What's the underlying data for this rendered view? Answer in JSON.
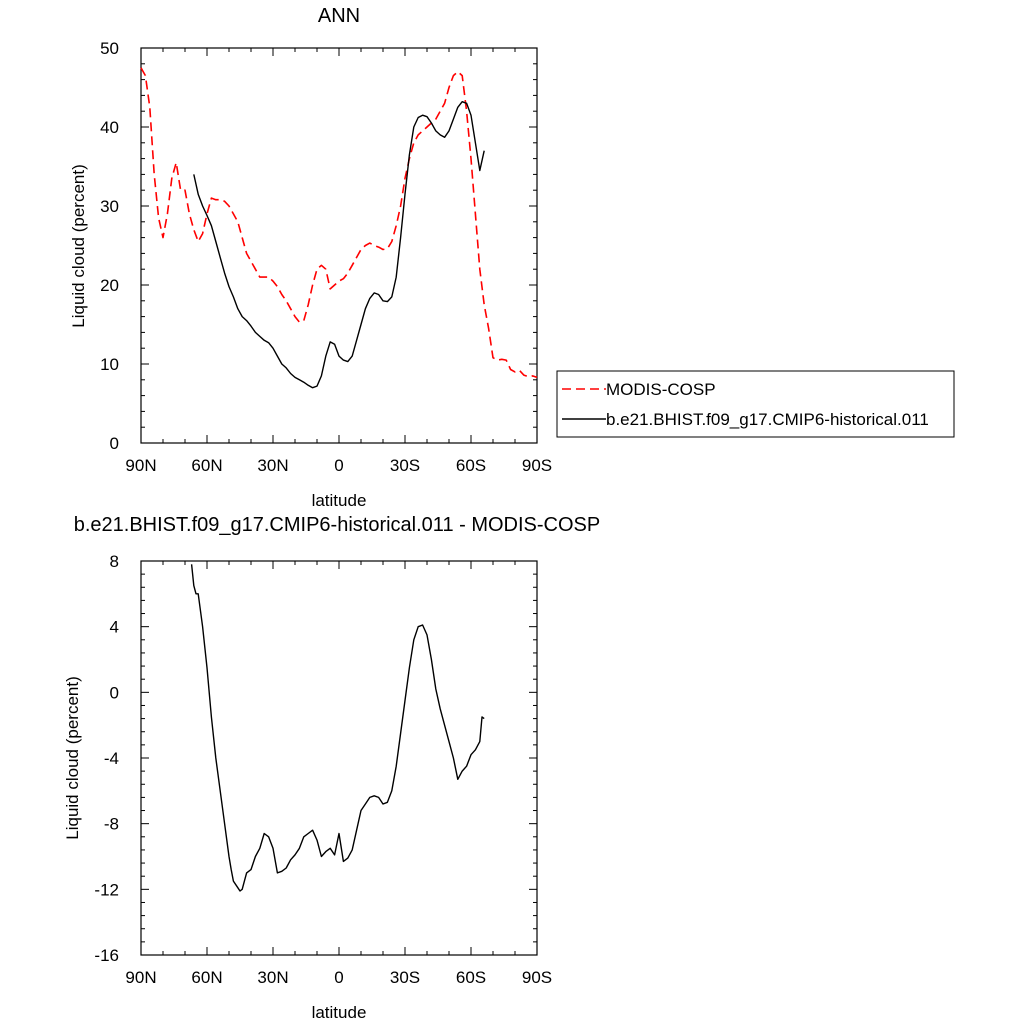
{
  "chart_data": [
    {
      "type": "line",
      "title": "ANN",
      "xlabel": "latitude",
      "ylabel": "Liquid cloud (percent)",
      "xlim": [
        90,
        -90
      ],
      "ylim": [
        0,
        50
      ],
      "xticks": [
        90,
        60,
        30,
        0,
        -30,
        -60,
        -90
      ],
      "xtick_labels": [
        "90N",
        "60N",
        "30N",
        "0",
        "30S",
        "60S",
        "90S"
      ],
      "yticks": [
        0,
        10,
        20,
        30,
        40,
        50
      ],
      "ytick_labels": [
        "0",
        "10",
        "20",
        "30",
        "40",
        "50"
      ],
      "legend": "right, outside plot",
      "series": [
        {
          "name": "MODIS-COSP",
          "color": "#ff0000",
          "style": "dashed",
          "x": [
            90,
            88,
            86,
            84,
            82,
            80,
            78,
            76,
            74,
            72,
            70,
            68,
            66,
            64,
            62,
            60,
            58,
            56,
            54,
            52,
            50,
            48,
            46,
            44,
            42,
            40,
            38,
            36,
            34,
            32,
            30,
            28,
            26,
            24,
            22,
            20,
            18,
            16,
            14,
            12,
            10,
            8,
            6,
            4,
            2,
            0,
            -2,
            -4,
            -6,
            -8,
            -10,
            -12,
            -14,
            -16,
            -18,
            -20,
            -22,
            -24,
            -26,
            -28,
            -30,
            -32,
            -34,
            -36,
            -38,
            -40,
            -42,
            -44,
            -46,
            -48,
            -50,
            -52,
            -54,
            -56,
            -58,
            -60,
            -62,
            -64,
            -66,
            -68,
            -70,
            -72,
            -74,
            -76,
            -78,
            -80,
            -82,
            -84,
            -86,
            -88,
            -90
          ],
          "y": [
            47.5,
            46.5,
            42.5,
            34.0,
            28.5,
            26.0,
            29.0,
            33.5,
            35.5,
            32.0,
            32.0,
            29.0,
            27.0,
            25.5,
            26.5,
            29.0,
            31.0,
            30.8,
            30.8,
            30.6,
            30.0,
            29.0,
            28.0,
            26.0,
            24.0,
            23.0,
            22.0,
            21.0,
            21.0,
            21.0,
            20.5,
            19.8,
            18.8,
            18.0,
            17.0,
            16.0,
            15.3,
            15.5,
            17.5,
            20.0,
            22.0,
            22.5,
            22.0,
            19.5,
            20.0,
            20.5,
            20.8,
            21.5,
            22.5,
            23.5,
            24.5,
            25.0,
            25.3,
            25.0,
            24.8,
            24.5,
            24.6,
            25.5,
            27.5,
            30.0,
            33.5,
            36.0,
            38.0,
            39.0,
            39.5,
            40.0,
            40.5,
            41.0,
            42.0,
            43.0,
            45.0,
            46.5,
            47.0,
            46.5,
            42.0,
            36.0,
            29.0,
            22.0,
            17.5,
            14.5,
            10.8,
            10.5,
            10.6,
            10.5,
            9.3,
            9.0,
            9.2,
            8.6,
            8.4,
            8.5,
            8.3
          ]
        },
        {
          "name": "b.e21.BHIST.f09_g17.CMIP6-historical.011",
          "color": "#000000",
          "style": "solid",
          "x": [
            66,
            64,
            62,
            60,
            58,
            56,
            54,
            52,
            50,
            48,
            46,
            44,
            42,
            40,
            38,
            36,
            34,
            32,
            30,
            28,
            26,
            24,
            22,
            20,
            18,
            16,
            14,
            12,
            10,
            8,
            6,
            4,
            2,
            0,
            -2,
            -4,
            -6,
            -8,
            -10,
            -12,
            -14,
            -16,
            -18,
            -20,
            -22,
            -24,
            -26,
            -28,
            -30,
            -32,
            -34,
            -36,
            -38,
            -40,
            -42,
            -44,
            -46,
            -48,
            -50,
            -52,
            -54,
            -56,
            -58,
            -60,
            -62,
            -64,
            -66
          ],
          "y": [
            34.0,
            31.5,
            30.0,
            28.8,
            27.5,
            25.5,
            23.5,
            21.5,
            19.8,
            18.5,
            17.0,
            16.0,
            15.5,
            14.8,
            14.0,
            13.5,
            13.0,
            12.7,
            12.0,
            11.0,
            10.0,
            9.5,
            8.8,
            8.3,
            8.0,
            7.7,
            7.3,
            7.0,
            7.2,
            8.5,
            11.0,
            12.8,
            12.5,
            11.0,
            10.5,
            10.3,
            11.0,
            13.0,
            15.0,
            17.0,
            18.3,
            19.0,
            18.8,
            18.0,
            17.9,
            18.5,
            21.0,
            26.0,
            31.5,
            36.5,
            40.0,
            41.2,
            41.5,
            41.3,
            40.5,
            39.5,
            39.0,
            38.7,
            39.5,
            41.0,
            42.5,
            43.2,
            43.0,
            41.5,
            38.0,
            34.5,
            37.0
          ]
        }
      ]
    },
    {
      "type": "line",
      "title": "b.e21.BHIST.f09_g17.CMIP6-historical.011 - MODIS-COSP",
      "xlabel": "latitude",
      "ylabel": "Liquid cloud (percent)",
      "xlim": [
        90,
        -90
      ],
      "ylim": [
        -16,
        8
      ],
      "xticks": [
        90,
        60,
        30,
        0,
        -30,
        -60,
        -90
      ],
      "xtick_labels": [
        "90N",
        "60N",
        "30N",
        "0",
        "30S",
        "60S",
        "90S"
      ],
      "yticks": [
        -16,
        -12,
        -8,
        -4,
        0,
        4,
        8
      ],
      "ytick_labels": [
        "-16",
        "-12",
        "-8",
        "-4",
        "0",
        "4",
        "8"
      ],
      "series": [
        {
          "color": "#000000",
          "style": "solid",
          "x": [
            67,
            66,
            65,
            64,
            62,
            60,
            58,
            56,
            54,
            52,
            50,
            49,
            48,
            46,
            45,
            44,
            43,
            42,
            40,
            38,
            36,
            34,
            32,
            30,
            28,
            26,
            24,
            22,
            20,
            18,
            16,
            14,
            12,
            10,
            8,
            6,
            4,
            2,
            0,
            -2,
            -4,
            -6,
            -8,
            -10,
            -12,
            -14,
            -16,
            -18,
            -20,
            -22,
            -24,
            -26,
            -28,
            -30,
            -32,
            -34,
            -36,
            -38,
            -40,
            -42,
            -44,
            -46,
            -48,
            -50,
            -52,
            -54,
            -56,
            -58,
            -60,
            -62,
            -64,
            -65,
            -66
          ],
          "y": [
            7.8,
            6.5,
            6.0,
            6.0,
            4.0,
            1.5,
            -1.5,
            -4.0,
            -6.0,
            -8.0,
            -10.0,
            -10.8,
            -11.5,
            -11.9,
            -12.1,
            -12.0,
            -11.5,
            -11.0,
            -10.8,
            -10.0,
            -9.5,
            -8.6,
            -8.8,
            -9.5,
            -11.0,
            -10.9,
            -10.7,
            -10.2,
            -9.9,
            -9.5,
            -8.8,
            -8.6,
            -8.4,
            -9.0,
            -10.0,
            -9.7,
            -9.5,
            -9.9,
            -8.6,
            -10.3,
            -10.1,
            -9.6,
            -8.4,
            -7.2,
            -6.8,
            -6.4,
            -6.3,
            -6.4,
            -6.8,
            -6.7,
            -6.0,
            -4.5,
            -2.5,
            -0.5,
            1.5,
            3.2,
            4.0,
            4.1,
            3.5,
            2.0,
            0.2,
            -1.0,
            -2.0,
            -3.0,
            -4.0,
            -5.3,
            -4.8,
            -4.5,
            -3.8,
            -3.5,
            -3.0,
            -1.5,
            -1.6
          ]
        }
      ]
    }
  ]
}
